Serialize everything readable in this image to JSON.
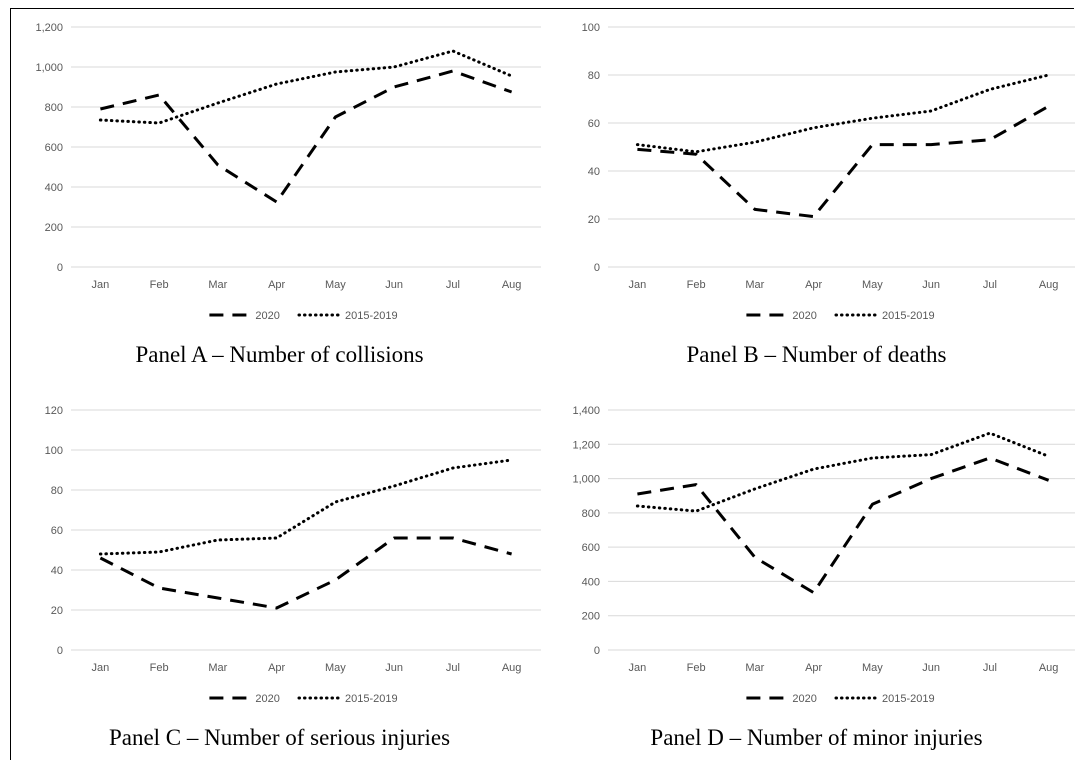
{
  "figure": {
    "panels": [
      {
        "caption": "Panel A – Number of collisions"
      },
      {
        "caption": "Panel B – Number of deaths"
      },
      {
        "caption": "Panel C – Number of serious injuries"
      },
      {
        "caption": "Panel D – Number of minor injuries"
      }
    ]
  },
  "chart_data": [
    {
      "type": "line",
      "title": "Panel A – Number of collisions",
      "categories": [
        "Jan",
        "Feb",
        "Mar",
        "Apr",
        "May",
        "Jun",
        "Jul",
        "Aug"
      ],
      "ylim": [
        0,
        1200
      ],
      "yticks": [
        0,
        200,
        400,
        600,
        800,
        1000,
        1200
      ],
      "ytick_labels": [
        "0",
        "200",
        "400",
        "600",
        "800",
        "1,000",
        "1,200"
      ],
      "grid": true,
      "legend": "bottom",
      "series": [
        {
          "name": "2020",
          "style": "dashed",
          "values": [
            790,
            860,
            510,
            325,
            750,
            900,
            980,
            875
          ]
        },
        {
          "name": "2015-2019",
          "style": "dotted",
          "values": [
            735,
            720,
            820,
            915,
            975,
            1000,
            1080,
            955
          ]
        }
      ]
    },
    {
      "type": "line",
      "title": "Panel B – Number of deaths",
      "categories": [
        "Jan",
        "Feb",
        "Mar",
        "Apr",
        "May",
        "Jun",
        "Jul",
        "Aug"
      ],
      "ylim": [
        0,
        100
      ],
      "yticks": [
        0,
        20,
        40,
        60,
        80,
        100
      ],
      "ytick_labels": [
        "0",
        "20",
        "40",
        "60",
        "80",
        "100"
      ],
      "grid": true,
      "legend": "bottom",
      "series": [
        {
          "name": "2020",
          "style": "dashed",
          "values": [
            49,
            47,
            24,
            21,
            51,
            51,
            53,
            67
          ]
        },
        {
          "name": "2015-2019",
          "style": "dotted",
          "values": [
            51,
            48,
            52,
            58,
            62,
            65,
            74,
            80
          ]
        }
      ]
    },
    {
      "type": "line",
      "title": "Panel C – Number of serious injuries",
      "categories": [
        "Jan",
        "Feb",
        "Mar",
        "Apr",
        "May",
        "Jun",
        "Jul",
        "Aug"
      ],
      "ylim": [
        0,
        120
      ],
      "yticks": [
        0,
        20,
        40,
        60,
        80,
        100,
        120
      ],
      "ytick_labels": [
        "0",
        "20",
        "40",
        "60",
        "80",
        "100",
        "120"
      ],
      "grid": true,
      "legend": "bottom",
      "series": [
        {
          "name": "2020",
          "style": "dashed",
          "values": [
            46,
            31,
            26,
            21,
            35,
            56,
            56,
            48
          ]
        },
        {
          "name": "2015-2019",
          "style": "dotted",
          "values": [
            48,
            49,
            55,
            56,
            74,
            82,
            91,
            95
          ]
        }
      ]
    },
    {
      "type": "line",
      "title": "Panel D – Number of minor injuries",
      "categories": [
        "Jan",
        "Feb",
        "Mar",
        "Apr",
        "May",
        "Jun",
        "Jul",
        "Aug"
      ],
      "ylim": [
        0,
        1400
      ],
      "yticks": [
        0,
        200,
        400,
        600,
        800,
        1000,
        1200,
        1400
      ],
      "ytick_labels": [
        "0",
        "200",
        "400",
        "600",
        "800",
        "1,000",
        "1,200",
        "1,400"
      ],
      "grid": true,
      "legend": "bottom",
      "series": [
        {
          "name": "2020",
          "style": "dashed",
          "values": [
            910,
            965,
            540,
            335,
            850,
            1000,
            1120,
            990
          ]
        },
        {
          "name": "2015-2019",
          "style": "dotted",
          "values": [
            840,
            810,
            940,
            1055,
            1120,
            1140,
            1265,
            1130
          ]
        }
      ]
    }
  ]
}
